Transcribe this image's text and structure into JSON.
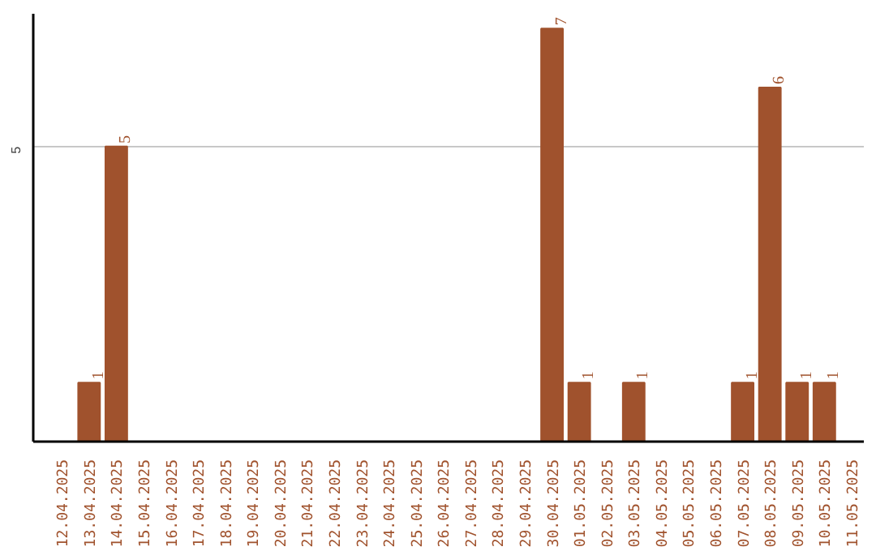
{
  "chart_data": {
    "type": "bar",
    "categories": [
      "12.04.2025",
      "13.04.2025",
      "14.04.2025",
      "15.04.2025",
      "16.04.2025",
      "17.04.2025",
      "18.04.2025",
      "19.04.2025",
      "20.04.2025",
      "21.04.2025",
      "22.04.2025",
      "23.04.2025",
      "24.04.2025",
      "25.04.2025",
      "26.04.2025",
      "27.04.2025",
      "28.04.2025",
      "29.04.2025",
      "30.04.2025",
      "01.05.2025",
      "02.05.2025",
      "03.05.2025",
      "04.05.2025",
      "05.05.2025",
      "06.05.2025",
      "07.05.2025",
      "08.05.2025",
      "09.05.2025",
      "10.05.2025",
      "11.05.2025"
    ],
    "values": [
      0,
      1,
      5,
      0,
      0,
      0,
      0,
      0,
      0,
      0,
      0,
      0,
      0,
      0,
      0,
      0,
      0,
      0,
      7,
      1,
      0,
      1,
      0,
      0,
      0,
      1,
      6,
      1,
      1,
      0
    ],
    "value_labels": [
      null,
      "1",
      "5",
      null,
      null,
      null,
      null,
      null,
      null,
      null,
      null,
      null,
      null,
      null,
      null,
      null,
      null,
      null,
      "7",
      "1",
      null,
      "1",
      null,
      null,
      null,
      "1",
      "6",
      "1",
      "1",
      null
    ],
    "color": "#a0522d",
    "ylim": [
      0,
      7.25
    ],
    "yticks": [
      5
    ],
    "grid": "y"
  }
}
